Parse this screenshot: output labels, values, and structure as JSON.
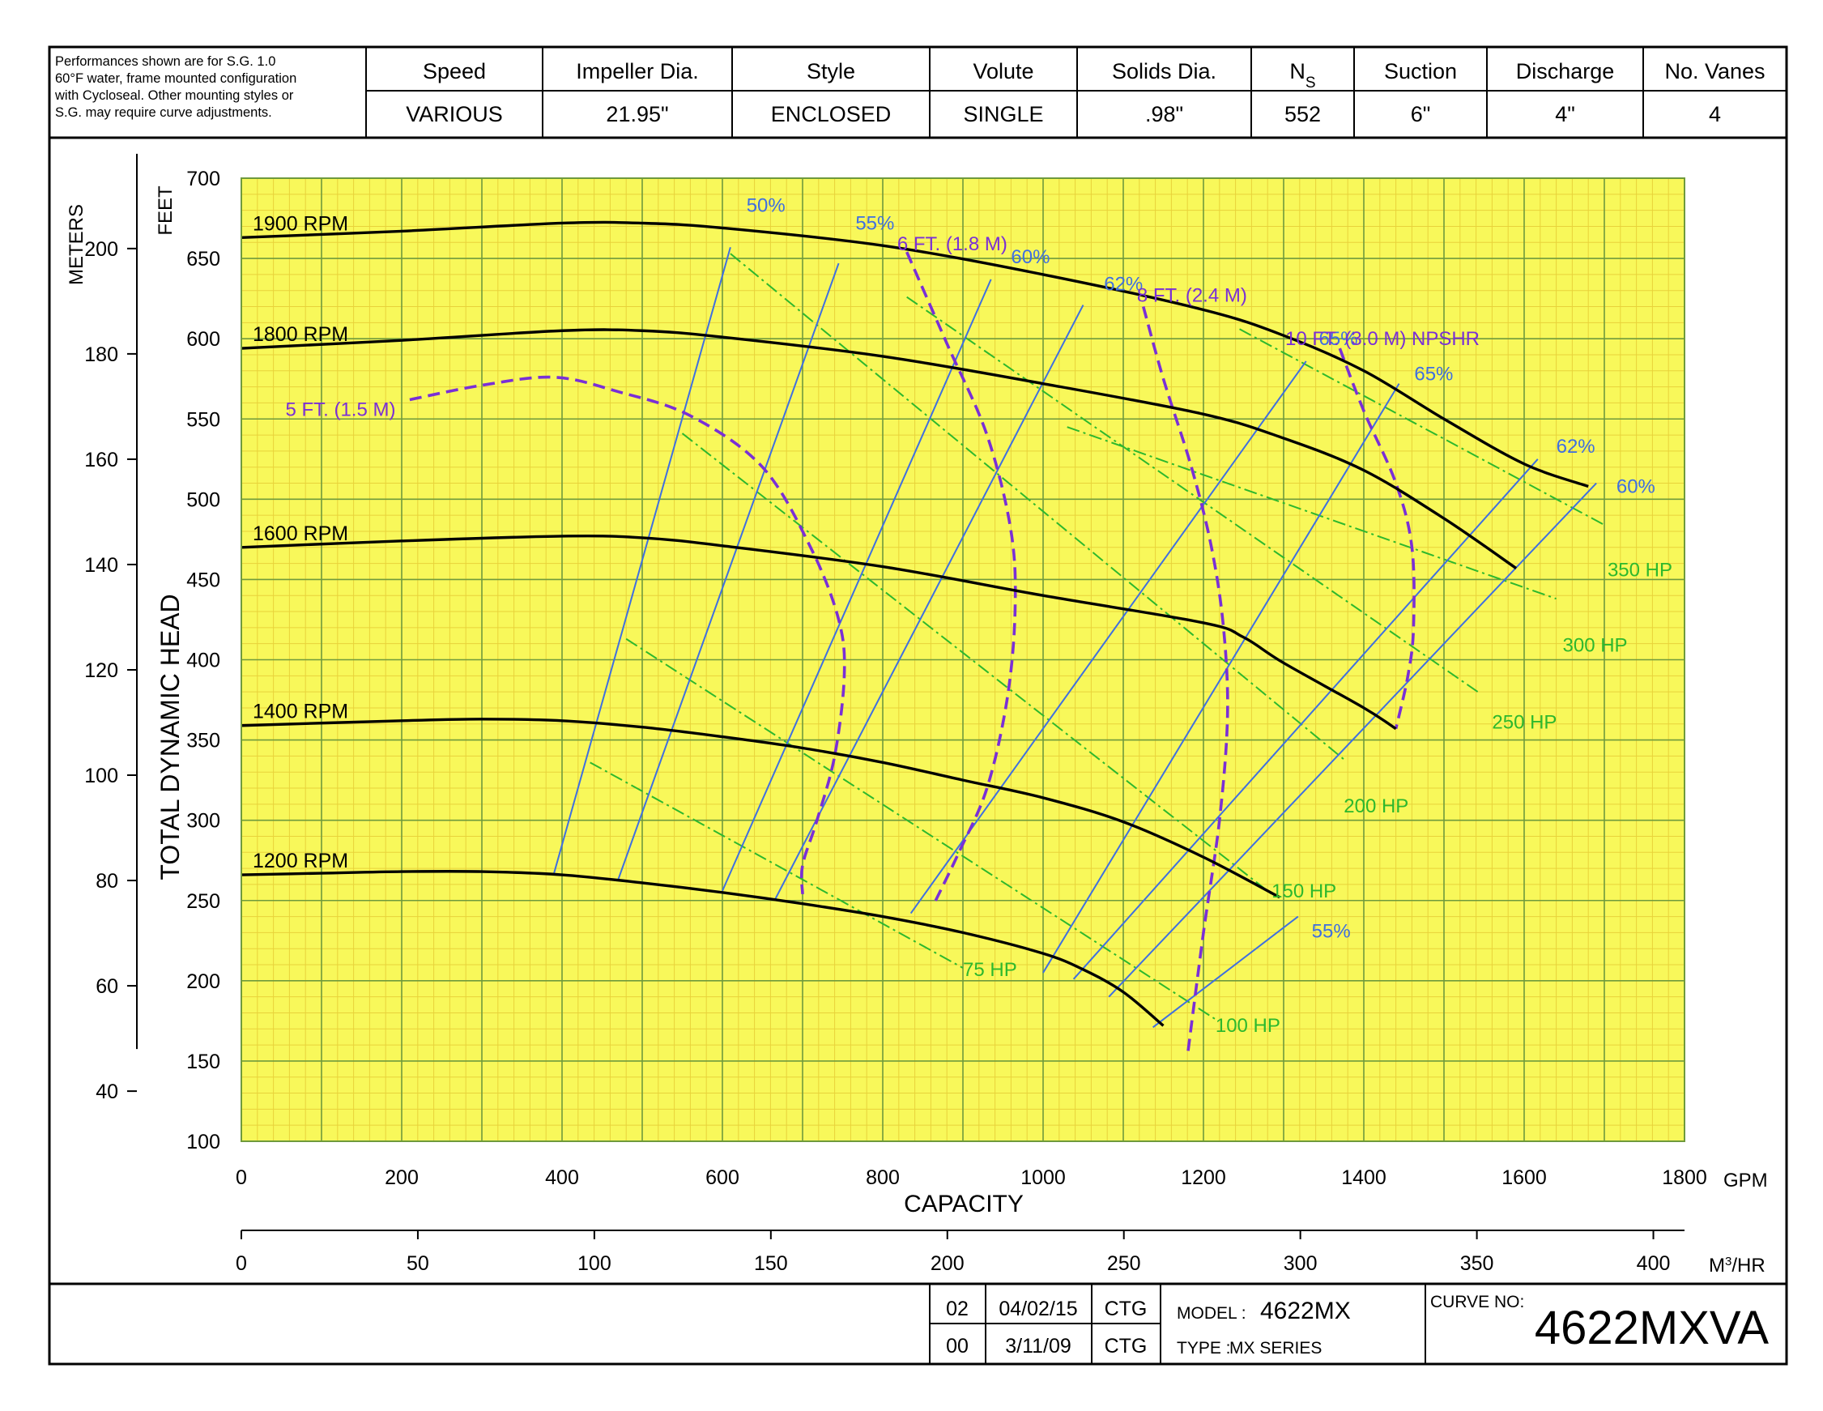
{
  "header": {
    "note_lines": [
      "Performances shown are for S.G. 1.0",
      "60°F water, frame mounted configuration",
      "with Cycloseal. Other mounting styles or",
      "S.G. may require curve adjustments."
    ],
    "columns": [
      {
        "label": "Speed",
        "value": "VARIOUS"
      },
      {
        "label": "Impeller Dia.",
        "value": "21.95\""
      },
      {
        "label": "Style",
        "value": "ENCLOSED"
      },
      {
        "label": "Volute",
        "value": "SINGLE"
      },
      {
        "label": "Solids Dia.",
        "value": ".98\""
      },
      {
        "label": "N",
        "label_sub": "S",
        "value": "552"
      },
      {
        "label": "Suction",
        "value": "6\""
      },
      {
        "label": "Discharge",
        "value": "4\""
      },
      {
        "label": "No. Vanes",
        "value": "4"
      }
    ]
  },
  "footer": {
    "revisions": [
      {
        "rev": "02",
        "date": "04/02/15",
        "by": "CTG"
      },
      {
        "rev": "00",
        "date": "3/11/09",
        "by": "CTG"
      }
    ],
    "model_label": "MODEL :",
    "model_value": "4622MX",
    "type_label": "TYPE :",
    "type_value": "MX SERIES",
    "curve_label": "CURVE NO:",
    "curve_value": "4622MXVA"
  },
  "colors": {
    "plot_bg": "#f8f85a",
    "minor_grid": "#e8d23a",
    "major_grid": "#6f9a3c",
    "head_curve": "#000000",
    "efficiency": "#3f6fe0",
    "power": "#2db82d",
    "npsh": "#7a2fd6"
  },
  "chart_data": {
    "type": "line",
    "xlabel": "CAPACITY",
    "ylabel": "TOTAL DYNAMIC HEAD",
    "x_unit": "GPM",
    "x_unit_secondary": "M³/HR",
    "y_unit": "FEET",
    "y_unit_secondary": "METERS",
    "xlim": [
      0,
      1800
    ],
    "ylim": [
      100,
      700
    ],
    "grid": true,
    "x_ticks": [
      "0",
      "200",
      "400",
      "600",
      "800",
      "1000",
      "1200",
      "1400",
      "1600",
      "1800"
    ],
    "y_ticks": [
      "100",
      "150",
      "200",
      "250",
      "300",
      "350",
      "400",
      "450",
      "500",
      "550",
      "600",
      "650",
      "700"
    ],
    "m3hr_ticks": [
      "0",
      "50",
      "100",
      "150",
      "200",
      "250",
      "300",
      "350",
      "400"
    ],
    "meter_ticks": [
      "40",
      "60",
      "80",
      "100",
      "120",
      "140",
      "160",
      "180",
      "200"
    ],
    "head_curves": [
      {
        "name": "1900 RPM",
        "points": [
          [
            0,
            663
          ],
          [
            200,
            667
          ],
          [
            400,
            672
          ],
          [
            500,
            672
          ],
          [
            600,
            669
          ],
          [
            800,
            658
          ],
          [
            1000,
            640
          ],
          [
            1200,
            618
          ],
          [
            1300,
            602
          ],
          [
            1400,
            580
          ],
          [
            1500,
            550
          ],
          [
            1600,
            522
          ],
          [
            1680,
            508
          ]
        ]
      },
      {
        "name": "1800 RPM",
        "points": [
          [
            0,
            594
          ],
          [
            200,
            599
          ],
          [
            400,
            605
          ],
          [
            500,
            605
          ],
          [
            600,
            601
          ],
          [
            800,
            589
          ],
          [
            1000,
            572
          ],
          [
            1200,
            553
          ],
          [
            1300,
            538
          ],
          [
            1400,
            518
          ],
          [
            1500,
            488
          ],
          [
            1590,
            457
          ]
        ]
      },
      {
        "name": "1600 RPM",
        "points": [
          [
            0,
            470
          ],
          [
            200,
            474
          ],
          [
            400,
            477
          ],
          [
            500,
            476
          ],
          [
            600,
            471
          ],
          [
            800,
            458
          ],
          [
            1000,
            440
          ],
          [
            1200,
            423
          ],
          [
            1250,
            414
          ],
          [
            1300,
            398
          ],
          [
            1400,
            370
          ],
          [
            1440,
            357
          ]
        ]
      },
      {
        "name": "1400 RPM",
        "points": [
          [
            0,
            359
          ],
          [
            200,
            362
          ],
          [
            300,
            363
          ],
          [
            400,
            362
          ],
          [
            500,
            358
          ],
          [
            600,
            352
          ],
          [
            700,
            345
          ],
          [
            800,
            336
          ],
          [
            900,
            325
          ],
          [
            1000,
            314
          ],
          [
            1100,
            299
          ],
          [
            1200,
            277
          ],
          [
            1295,
            252
          ]
        ]
      },
      {
        "name": "1200 RPM",
        "points": [
          [
            0,
            266
          ],
          [
            100,
            267
          ],
          [
            200,
            268
          ],
          [
            300,
            268
          ],
          [
            400,
            266
          ],
          [
            500,
            261
          ],
          [
            600,
            255
          ],
          [
            700,
            248
          ],
          [
            800,
            240
          ],
          [
            900,
            230
          ],
          [
            1000,
            217
          ],
          [
            1050,
            207
          ],
          [
            1100,
            193
          ],
          [
            1150,
            172
          ]
        ]
      }
    ],
    "efficiency_curves": [
      {
        "name": "50%",
        "points": [
          [
            390,
            267
          ],
          [
            610,
            657
          ]
        ]
      },
      {
        "name": "55%",
        "points": [
          [
            470,
            263
          ],
          [
            745,
            647
          ]
        ]
      },
      {
        "name": "60%",
        "points": [
          [
            600,
            256
          ],
          [
            935,
            637
          ]
        ]
      },
      {
        "name": "62%",
        "points": [
          [
            665,
            250
          ],
          [
            1050,
            621
          ]
        ]
      },
      {
        "name": "65%",
        "points": [
          [
            835,
            242
          ],
          [
            1328,
            586
          ]
        ]
      },
      {
        "name": "65%",
        "points": [
          [
            1000,
            205
          ],
          [
            1444,
            572
          ]
        ]
      },
      {
        "name": "62%",
        "points": [
          [
            1038,
            201
          ],
          [
            1617,
            525
          ]
        ]
      },
      {
        "name": "60%",
        "points": [
          [
            1082,
            190
          ],
          [
            1690,
            510
          ]
        ]
      },
      {
        "name": "55%",
        "points": [
          [
            1137,
            171
          ],
          [
            1318,
            240
          ]
        ]
      }
    ],
    "efficiency_labels": [
      {
        "text": "50%",
        "at": [
          630,
          679
        ]
      },
      {
        "text": "55%",
        "at": [
          766,
          668
        ]
      },
      {
        "text": "60%",
        "at": [
          960,
          647
        ]
      },
      {
        "text": "62%",
        "at": [
          1076,
          630
        ]
      },
      {
        "text": "65%",
        "at": [
          1344,
          596
        ]
      },
      {
        "text": "65%",
        "at": [
          1463,
          574
        ]
      },
      {
        "text": "62%",
        "at": [
          1640,
          529
        ]
      },
      {
        "text": "60%",
        "at": [
          1715,
          504
        ]
      },
      {
        "text": "55%",
        "at": [
          1335,
          227
        ]
      }
    ],
    "power_curves": [
      {
        "name": "75 HP",
        "points": [
          [
            435,
            336
          ],
          [
            900,
            208
          ]
        ]
      },
      {
        "name": "100 HP",
        "points": [
          [
            480,
            413
          ],
          [
            1215,
            176
          ]
        ]
      },
      {
        "name": "150 HP",
        "points": [
          [
            550,
            541
          ],
          [
            1285,
            254
          ]
        ]
      },
      {
        "name": "200 HP",
        "points": [
          [
            610,
            653
          ],
          [
            1375,
            338
          ]
        ]
      },
      {
        "name": "250 HP",
        "points": [
          [
            830,
            626
          ],
          [
            1545,
            379
          ]
        ]
      },
      {
        "name": "300 HP",
        "points": [
          [
            1030,
            545
          ],
          [
            1640,
            438
          ]
        ]
      },
      {
        "name": "350 HP",
        "points": [
          [
            1245,
            606
          ],
          [
            1700,
            484
          ]
        ]
      }
    ],
    "power_labels": [
      {
        "text": "75 HP",
        "at": [
          900,
          203
        ]
      },
      {
        "text": "100 HP",
        "at": [
          1215,
          168
        ]
      },
      {
        "text": "150 HP",
        "at": [
          1285,
          252
        ]
      },
      {
        "text": "200 HP",
        "at": [
          1375,
          305
        ]
      },
      {
        "text": "250 HP",
        "at": [
          1560,
          357
        ]
      },
      {
        "text": "300 HP",
        "at": [
          1648,
          405
        ]
      },
      {
        "text": "350 HP",
        "at": [
          1704,
          452
        ]
      }
    ],
    "npshr_curves": [
      {
        "name": "5 FT. (1.5 M)",
        "points": [
          [
            210,
            562
          ],
          [
            300,
            571
          ],
          [
            390,
            576
          ],
          [
            470,
            567
          ],
          [
            560,
            552
          ],
          [
            650,
            520
          ],
          [
            710,
            470
          ],
          [
            745,
            425
          ],
          [
            752,
            390
          ],
          [
            740,
            340
          ],
          [
            718,
            300
          ],
          [
            700,
            272
          ],
          [
            700,
            254
          ]
        ]
      },
      {
        "name": "6 FT. (1.8 M)",
        "points": [
          [
            830,
            654
          ],
          [
            880,
            597
          ],
          [
            930,
            540
          ],
          [
            960,
            480
          ],
          [
            965,
            430
          ],
          [
            955,
            375
          ],
          [
            930,
            320
          ],
          [
            895,
            280
          ],
          [
            865,
            249
          ]
        ]
      },
      {
        "name": "8 FT. (2.4 M)",
        "points": [
          [
            1125,
            620
          ],
          [
            1150,
            575
          ],
          [
            1185,
            520
          ],
          [
            1210,
            470
          ],
          [
            1225,
            420
          ],
          [
            1230,
            365
          ],
          [
            1220,
            300
          ],
          [
            1200,
            230
          ],
          [
            1180,
            153
          ]
        ]
      },
      {
        "name": "10 FT. (3.0 M) NPSHR",
        "points": [
          [
            1370,
            594
          ],
          [
            1400,
            555
          ],
          [
            1440,
            510
          ],
          [
            1460,
            470
          ],
          [
            1462,
            420
          ],
          [
            1455,
            390
          ],
          [
            1440,
            357
          ]
        ]
      }
    ],
    "npshr_labels": [
      {
        "text": "5 FT. (1.5 M)",
        "at": [
          55,
          552
        ]
      },
      {
        "text": "6 FT. (1.8 M)",
        "at": [
          818,
          655
        ]
      },
      {
        "text": "8 FT. (2.4 M)",
        "at": [
          1117,
          623
        ]
      },
      {
        "text": "10 FT. (3.0 M) NPSHR",
        "at": [
          1302,
          596
        ]
      }
    ]
  }
}
